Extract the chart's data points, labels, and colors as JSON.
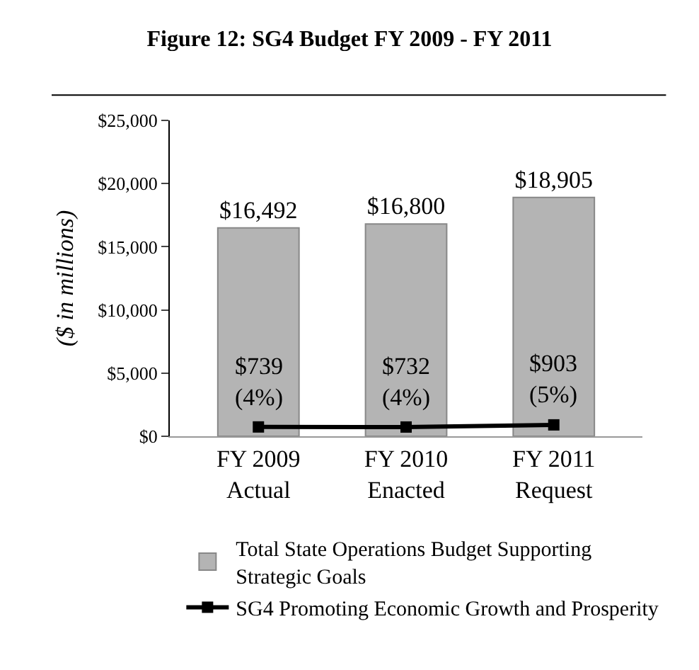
{
  "chart_data": {
    "type": "bar",
    "title": "Figure 12: SG4 Budget FY 2009 - FY 2011",
    "ylabel": "($ in millions)",
    "categories": [
      "FY 2009\nActual",
      "FY 2010\nEnacted",
      "FY 2011\nRequest"
    ],
    "series": [
      {
        "name": "Total State Operations Budget Supporting\nStrategic Goals",
        "color": "#b4b4b4",
        "values": [
          16492,
          16800,
          18905
        ],
        "value_labels": [
          "$16,492",
          "$16,800",
          "$18,905"
        ]
      },
      {
        "name": "SG4 Promoting Economic Growth and Prosperity",
        "type": "line",
        "color": "#000000",
        "values": [
          739,
          732,
          903
        ],
        "value_labels": [
          "$739\n(4%)",
          "$732\n(4%)",
          "$903\n(5%)"
        ]
      }
    ],
    "ylim": [
      0,
      25000
    ],
    "yticks": [
      {
        "value": 0,
        "label": "$0"
      },
      {
        "value": 5000,
        "label": "$5,000"
      },
      {
        "value": 10000,
        "label": "$10,000"
      },
      {
        "value": 15000,
        "label": "$15,000"
      },
      {
        "value": 20000,
        "label": "$20,000"
      },
      {
        "value": 25000,
        "label": "$25,000"
      }
    ],
    "grid": false,
    "legend": "bottom",
    "marker": "square",
    "line_style": "solid"
  }
}
